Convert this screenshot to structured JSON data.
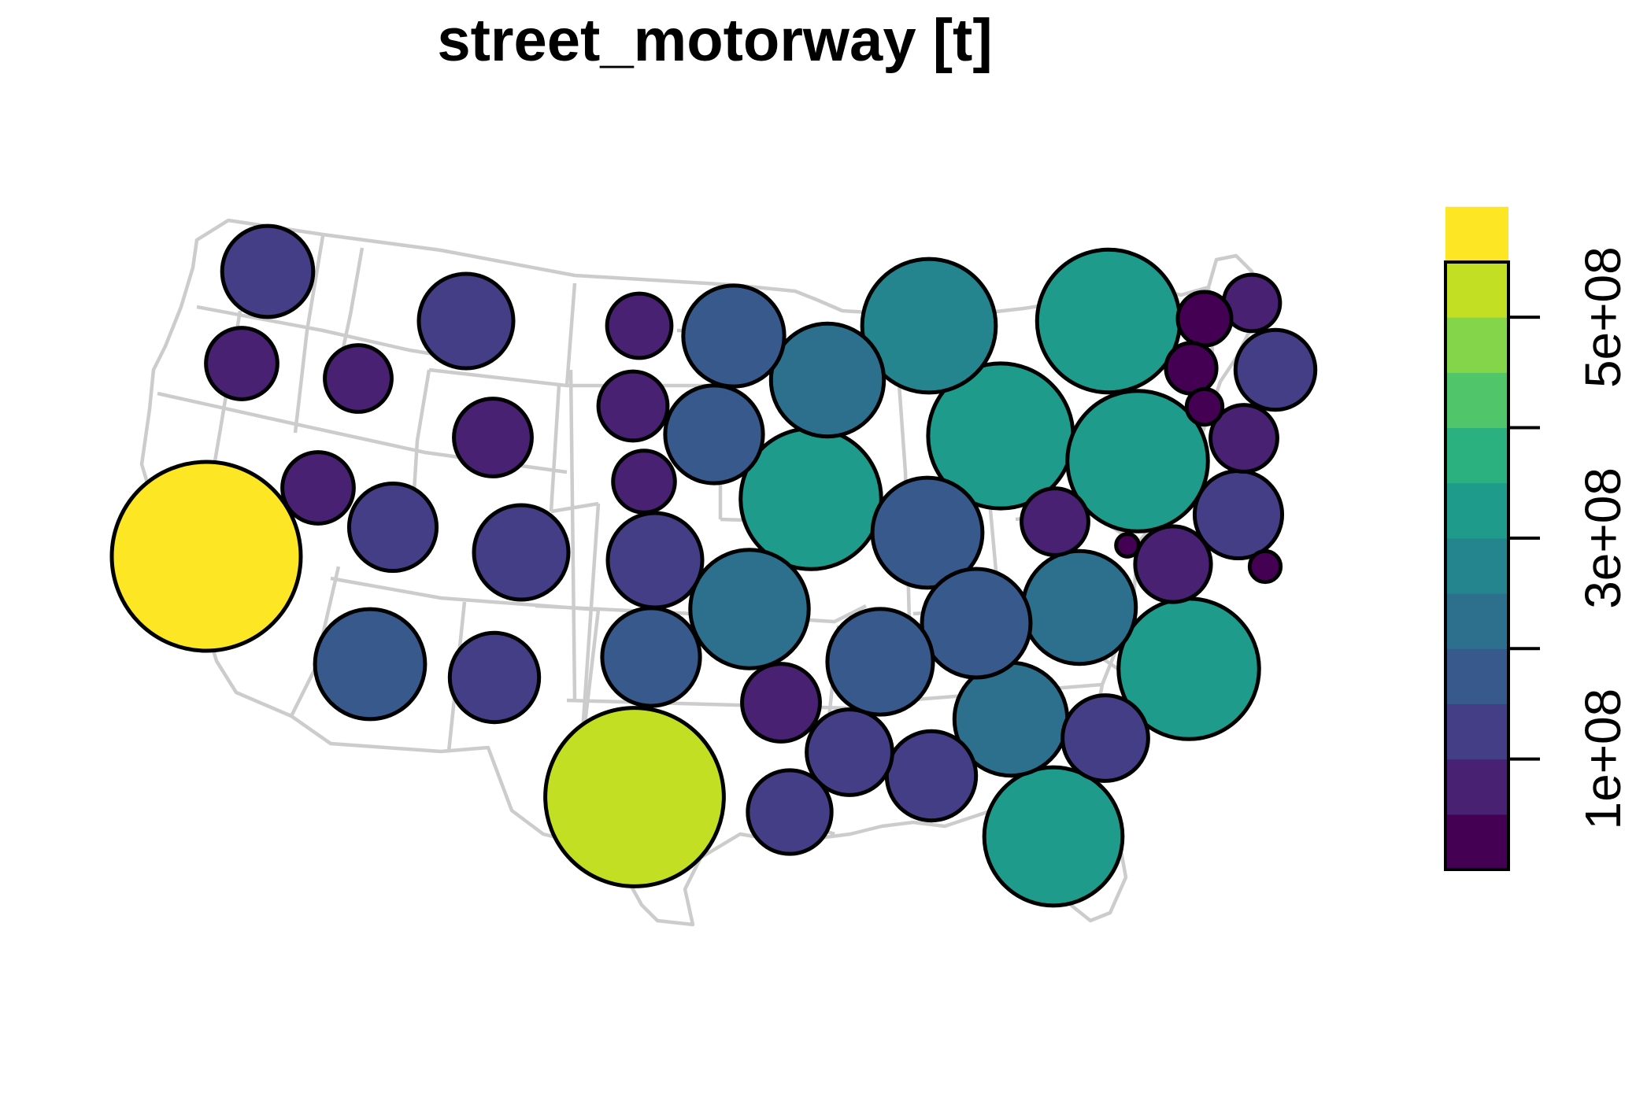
{
  "map": {
    "title": "street_motorway [t]",
    "basemap": "contiguous-us-states-outline",
    "basemap_color": "#cccccc",
    "symbol": "proportional-circle",
    "symbol_stroke": "#000000"
  },
  "legend": {
    "type": "stepped-color-bar",
    "placement": "right",
    "min": 0,
    "max": 550000000,
    "step": 50000000,
    "ticks": [
      {
        "value": 100000000,
        "label": "1e+08"
      },
      {
        "value": 300000000,
        "label": "3e+08"
      },
      {
        "value": 500000000,
        "label": "5e+08"
      }
    ],
    "palette": [
      "#440154",
      "#482173",
      "#433E85",
      "#38598C",
      "#2D708E",
      "#25858E",
      "#1E9B8A",
      "#2BB07F",
      "#51C56A",
      "#85D54A",
      "#C2DF23",
      "#FDE725"
    ]
  },
  "chart_data": {
    "type": "proportional-symbol-map",
    "title": "street_motorway [t]",
    "value_unit": "t",
    "states": [
      {
        "state": "Washington",
        "value": 130000000
      },
      {
        "state": "Oregon",
        "value": 80000000
      },
      {
        "state": "California",
        "value": 560000000
      },
      {
        "state": "Idaho",
        "value": 70000000
      },
      {
        "state": "Nevada",
        "value": 80000000
      },
      {
        "state": "Montana",
        "value": 140000000
      },
      {
        "state": "Wyoming",
        "value": 95000000
      },
      {
        "state": "Utah",
        "value": 120000000
      },
      {
        "state": "Colorado",
        "value": 140000000
      },
      {
        "state": "Arizona",
        "value": 190000000
      },
      {
        "state": "New Mexico",
        "value": 125000000
      },
      {
        "state": "North Dakota",
        "value": 65000000
      },
      {
        "state": "South Dakota",
        "value": 75000000
      },
      {
        "state": "Nebraska",
        "value": 60000000
      },
      {
        "state": "Kansas",
        "value": 140000000
      },
      {
        "state": "Oklahoma",
        "value": 150000000
      },
      {
        "state": "Texas",
        "value": 500000000
      },
      {
        "state": "Minnesota",
        "value": 160000000
      },
      {
        "state": "Iowa",
        "value": 150000000
      },
      {
        "state": "Missouri",
        "value": 220000000
      },
      {
        "state": "Arkansas",
        "value": 95000000
      },
      {
        "state": "Louisiana",
        "value": 110000000
      },
      {
        "state": "Wisconsin",
        "value": 200000000
      },
      {
        "state": "Illinois",
        "value": 310000000
      },
      {
        "state": "Michigan",
        "value": 280000000
      },
      {
        "state": "Indiana",
        "value": 190000000
      },
      {
        "state": "Ohio",
        "value": 330000000
      },
      {
        "state": "Kentucky",
        "value": 175000000
      },
      {
        "state": "Tennessee",
        "value": 185000000
      },
      {
        "state": "Mississippi",
        "value": 115000000
      },
      {
        "state": "Alabama",
        "value": 125000000
      },
      {
        "state": "Georgia",
        "value": 200000000
      },
      {
        "state": "Florida",
        "value": 300000000
      },
      {
        "state": "South Carolina",
        "value": 115000000
      },
      {
        "state": "North Carolina",
        "value": 310000000
      },
      {
        "state": "Virginia",
        "value": 200000000
      },
      {
        "state": "West Virginia",
        "value": 70000000
      },
      {
        "state": "Maryland",
        "value": 90000000
      },
      {
        "state": "Delaware",
        "value": 8000000
      },
      {
        "state": "Pennsylvania",
        "value": 310000000
      },
      {
        "state": "New Jersey",
        "value": 120000000
      },
      {
        "state": "New York",
        "value": 320000000
      },
      {
        "state": "Connecticut",
        "value": 70000000
      },
      {
        "state": "Rhode Island",
        "value": 20000000
      },
      {
        "state": "Massachusetts",
        "value": 100000000
      },
      {
        "state": "Vermont",
        "value": 40000000
      },
      {
        "state": "New Hampshire",
        "value": 45000000
      },
      {
        "state": "Maine",
        "value": 50000000
      },
      {
        "state": "District of Columbia",
        "value": 15000000
      }
    ]
  }
}
